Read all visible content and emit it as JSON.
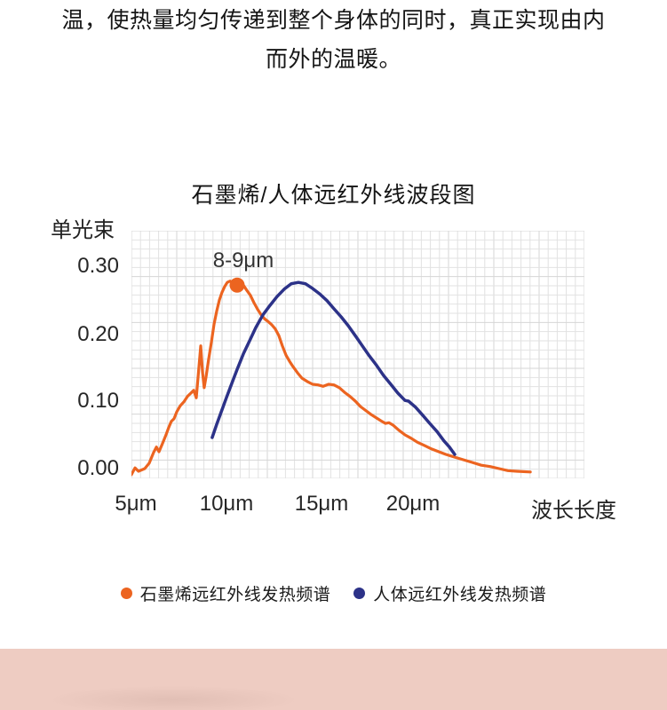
{
  "intro": {
    "line1": "温，使热量均匀传递到整个身体的同时，真正实现由内",
    "line2": "而外的温暖。"
  },
  "chart_data": {
    "type": "line",
    "title": "石墨烯/人体远红外线波段图",
    "grid": true,
    "legend_position": "bottom",
    "x_axis": {
      "label": "波长长度",
      "unit": "μm",
      "ticks": [
        "5μm",
        "10μm",
        "15μm",
        "20μm"
      ],
      "tick_values": [
        5,
        10,
        15,
        20
      ],
      "domain": [
        4.76,
        29.28
      ]
    },
    "y_axis": {
      "label": "单光束",
      "ticks": [
        "0.30",
        "0.20",
        "0.10",
        "0.00"
      ],
      "tick_values": [
        0.3,
        0.2,
        0.1,
        0.0
      ],
      "domain": [
        -0.0145,
        0.3526
      ]
    },
    "annotation": {
      "label": "8-9μm",
      "x": 10.48,
      "y": 0.272,
      "marker_radius_px": 8.5
    },
    "series": [
      {
        "name": "石墨烯远红外线发热频谱",
        "color": "#ec6420",
        "stroke_width": 3.2,
        "points": [
          [
            4.76,
            -0.009
          ],
          [
            4.95,
            0.001
          ],
          [
            5.14,
            -0.004
          ],
          [
            5.48,
            0.0
          ],
          [
            5.72,
            0.008
          ],
          [
            5.96,
            0.024
          ],
          [
            6.11,
            0.032
          ],
          [
            6.25,
            0.025
          ],
          [
            6.44,
            0.037
          ],
          [
            6.63,
            0.05
          ],
          [
            6.78,
            0.061
          ],
          [
            6.92,
            0.07
          ],
          [
            7.07,
            0.074
          ],
          [
            7.21,
            0.084
          ],
          [
            7.4,
            0.093
          ],
          [
            7.6,
            0.099
          ],
          [
            7.79,
            0.107
          ],
          [
            7.98,
            0.112
          ],
          [
            8.13,
            0.116
          ],
          [
            8.27,
            0.105
          ],
          [
            8.41,
            0.149
          ],
          [
            8.51,
            0.182
          ],
          [
            8.61,
            0.142
          ],
          [
            8.7,
            0.12
          ],
          [
            8.8,
            0.136
          ],
          [
            8.94,
            0.162
          ],
          [
            9.09,
            0.188
          ],
          [
            9.23,
            0.214
          ],
          [
            9.38,
            0.234
          ],
          [
            9.52,
            0.25
          ],
          [
            9.66,
            0.261
          ],
          [
            9.81,
            0.27
          ],
          [
            9.95,
            0.276
          ],
          [
            10.1,
            0.278
          ],
          [
            10.24,
            0.274
          ],
          [
            10.38,
            0.271
          ],
          [
            10.53,
            0.276
          ],
          [
            10.67,
            0.278
          ],
          [
            10.82,
            0.272
          ],
          [
            11.01,
            0.264
          ],
          [
            11.2,
            0.257
          ],
          [
            11.39,
            0.246
          ],
          [
            11.59,
            0.236
          ],
          [
            11.78,
            0.228
          ],
          [
            11.97,
            0.222
          ],
          [
            12.16,
            0.218
          ],
          [
            12.36,
            0.213
          ],
          [
            12.55,
            0.207
          ],
          [
            12.74,
            0.197
          ],
          [
            12.93,
            0.182
          ],
          [
            13.13,
            0.168
          ],
          [
            13.32,
            0.159
          ],
          [
            13.51,
            0.151
          ],
          [
            13.75,
            0.142
          ],
          [
            13.99,
            0.134
          ],
          [
            14.28,
            0.129
          ],
          [
            14.57,
            0.125
          ],
          [
            14.86,
            0.124
          ],
          [
            15.14,
            0.122
          ],
          [
            15.43,
            0.125
          ],
          [
            15.72,
            0.124
          ],
          [
            16.01,
            0.12
          ],
          [
            16.3,
            0.113
          ],
          [
            16.59,
            0.107
          ],
          [
            16.88,
            0.1
          ],
          [
            17.16,
            0.092
          ],
          [
            17.45,
            0.086
          ],
          [
            17.74,
            0.08
          ],
          [
            18.03,
            0.075
          ],
          [
            18.32,
            0.07
          ],
          [
            18.51,
            0.067
          ],
          [
            18.7,
            0.068
          ],
          [
            18.94,
            0.064
          ],
          [
            19.23,
            0.057
          ],
          [
            19.57,
            0.05
          ],
          [
            19.9,
            0.045
          ],
          [
            20.24,
            0.039
          ],
          [
            20.63,
            0.034
          ],
          [
            21.01,
            0.029
          ],
          [
            21.4,
            0.025
          ],
          [
            21.78,
            0.021
          ],
          [
            22.26,
            0.017
          ],
          [
            22.74,
            0.013
          ],
          [
            23.22,
            0.009
          ],
          [
            23.7,
            0.005
          ],
          [
            24.18,
            0.003
          ],
          [
            24.66,
            0.0
          ],
          [
            25.14,
            -0.003
          ],
          [
            25.62,
            -0.004
          ],
          [
            26.35,
            -0.005
          ]
        ]
      },
      {
        "name": "人体远红外线发热频谱",
        "color": "#2c3288",
        "stroke_width": 3.5,
        "points": [
          [
            9.13,
            0.046
          ],
          [
            9.38,
            0.066
          ],
          [
            9.62,
            0.084
          ],
          [
            9.9,
            0.105
          ],
          [
            10.19,
            0.126
          ],
          [
            10.48,
            0.147
          ],
          [
            10.82,
            0.17
          ],
          [
            11.15,
            0.189
          ],
          [
            11.49,
            0.209
          ],
          [
            11.88,
            0.228
          ],
          [
            12.26,
            0.242
          ],
          [
            12.64,
            0.255
          ],
          [
            13.03,
            0.266
          ],
          [
            13.41,
            0.274
          ],
          [
            13.8,
            0.276
          ],
          [
            14.18,
            0.274
          ],
          [
            14.57,
            0.267
          ],
          [
            14.95,
            0.259
          ],
          [
            15.34,
            0.249
          ],
          [
            15.72,
            0.237
          ],
          [
            16.11,
            0.225
          ],
          [
            16.49,
            0.212
          ],
          [
            16.88,
            0.197
          ],
          [
            17.26,
            0.182
          ],
          [
            17.64,
            0.167
          ],
          [
            18.03,
            0.153
          ],
          [
            18.41,
            0.138
          ],
          [
            18.8,
            0.125
          ],
          [
            19.18,
            0.112
          ],
          [
            19.57,
            0.101
          ],
          [
            19.76,
            0.1
          ],
          [
            20.14,
            0.091
          ],
          [
            20.53,
            0.079
          ],
          [
            20.91,
            0.067
          ],
          [
            21.3,
            0.055
          ],
          [
            21.68,
            0.041
          ],
          [
            21.97,
            0.032
          ],
          [
            22.26,
            0.021
          ]
        ]
      }
    ]
  },
  "colors": {
    "accent_orange": "#ec6420",
    "accent_navy": "#2c3288",
    "grid_line": "#e2e2e2",
    "grid_line_major": "#d6d6d6",
    "footer_block": "#eeccc2",
    "text_primary": "#151515"
  }
}
